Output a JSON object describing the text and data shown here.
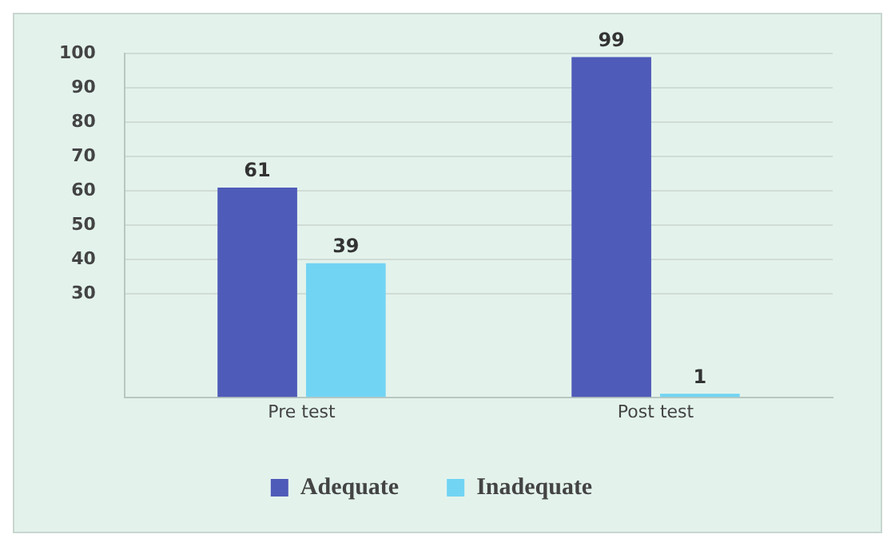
{
  "chart_data": {
    "type": "bar",
    "categories": [
      "Pre test",
      "Post test"
    ],
    "series": [
      {
        "name": "Adequate",
        "color": "#4f5bb8",
        "values": [
          61,
          99
        ]
      },
      {
        "name": "Inadequate",
        "color": "#72d4f3",
        "values": [
          39,
          1
        ]
      }
    ],
    "data_labels": true,
    "ylim": [
      0,
      100
    ],
    "yticks": [
      30,
      40,
      50,
      60,
      70,
      80,
      90,
      100
    ],
    "grid": "y",
    "legend": "bottom"
  }
}
